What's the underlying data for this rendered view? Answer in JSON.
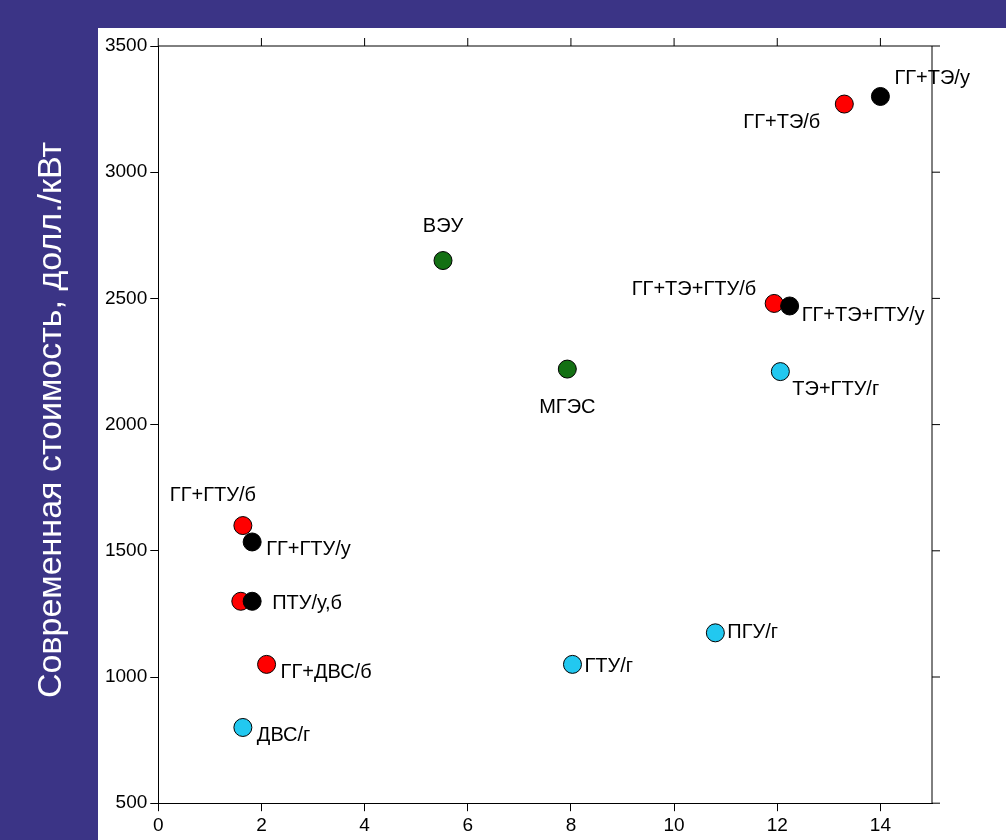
{
  "chart_data": {
    "type": "scatter",
    "ylabel": "Современная стоимость, долл./кВт",
    "xlim": [
      0,
      15
    ],
    "xticks": [
      0,
      2,
      4,
      6,
      8,
      10,
      12,
      14
    ],
    "ylim": [
      500,
      3500
    ],
    "yticks": [
      500,
      1000,
      1500,
      2000,
      2500,
      3000,
      3500
    ],
    "grid": false,
    "legend": false,
    "marker": "circle",
    "series": [
      {
        "color": "#000000",
        "x": [
          14.0,
          12.24,
          1.82,
          1.82
        ],
        "values": [
          3300,
          2470,
          1535,
          1300
        ]
      },
      {
        "color": "#ff0000",
        "x": [
          13.3,
          11.94,
          1.64,
          1.6,
          2.1
        ],
        "values": [
          3270,
          2480,
          1600,
          1300,
          1050
        ]
      },
      {
        "color": "#137013",
        "x": [
          5.52,
          7.93
        ],
        "values": [
          2650,
          2220
        ]
      },
      {
        "color": "#22c8f0",
        "x": [
          12.06,
          1.64,
          8.03,
          10.8
        ],
        "values": [
          2210,
          800,
          1050,
          1175
        ]
      }
    ],
    "annotations": [
      {
        "text": "ГГ+ТЭ/у",
        "x": 14.0,
        "y": 3300
      },
      {
        "text": "ГГ+ТЭ/б",
        "x": 13.3,
        "y": 3270
      },
      {
        "text": "ВЭУ",
        "x": 5.52,
        "y": 2650
      },
      {
        "text": "МГЭС",
        "x": 7.93,
        "y": 2220
      },
      {
        "text": "ГГ+ТЭ+ГТУ/б",
        "x": 11.94,
        "y": 2480
      },
      {
        "text": "ГГ+ТЭ+ГТУ/у",
        "x": 12.24,
        "y": 2470
      },
      {
        "text": "ТЭ+ГТУ/г",
        "x": 12.06,
        "y": 2210
      },
      {
        "text": "ГГ+ГТУ/б",
        "x": 1.64,
        "y": 1600
      },
      {
        "text": "ГГ+ГТУ/у",
        "x": 1.82,
        "y": 1535
      },
      {
        "text": "ПТУ/у,б",
        "x": 1.82,
        "y": 1300
      },
      {
        "text": "ГГ+ДВС/б",
        "x": 2.1,
        "y": 1050
      },
      {
        "text": "ДВС/г",
        "x": 1.64,
        "y": 800
      },
      {
        "text": "ГТУ/г",
        "x": 8.03,
        "y": 1050
      },
      {
        "text": "ПГУ/г",
        "x": 10.8,
        "y": 1175
      }
    ]
  }
}
